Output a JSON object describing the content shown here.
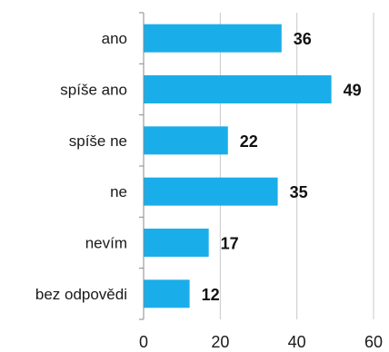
{
  "chart_data": {
    "type": "bar",
    "orientation": "horizontal",
    "categories": [
      "ano",
      "spíše ano",
      "spíše ne",
      "ne",
      "nevím",
      "bez odpovědi"
    ],
    "values": [
      36,
      49,
      22,
      35,
      17,
      12
    ],
    "xlim": [
      0,
      60
    ],
    "xticks": [
      0,
      20,
      40,
      60
    ],
    "grid": true,
    "legend": "none",
    "colors": {
      "bar": "#19aee9",
      "grid": "#c8c8c8",
      "axis": "#8a8a8a"
    }
  }
}
